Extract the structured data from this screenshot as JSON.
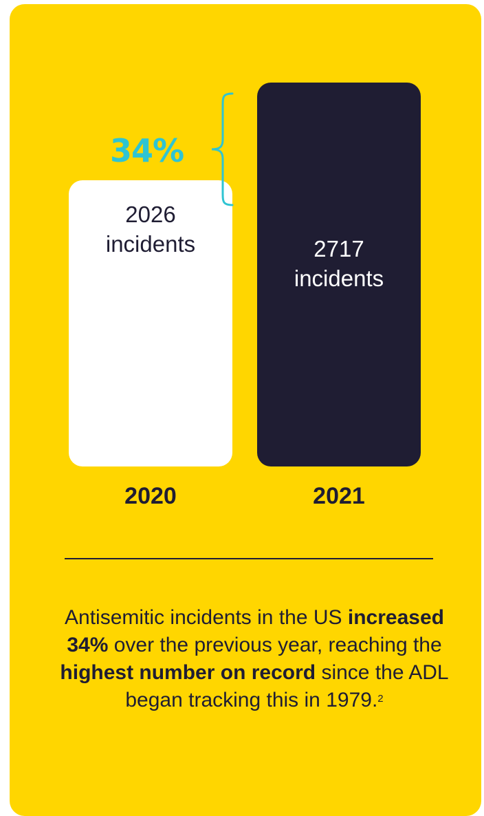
{
  "colors": {
    "background": "#ffd600",
    "bar_2020": "#ffffff",
    "bar_2021": "#1f1d33",
    "accent": "#2fc4d2",
    "text_dark": "#1f1d33"
  },
  "chart_data": {
    "type": "bar",
    "categories": [
      "2020",
      "2021"
    ],
    "values": [
      2026,
      2717
    ],
    "bar_labels": [
      {
        "number": "2026",
        "unit": "incidents"
      },
      {
        "number": "2717",
        "unit": "incidents"
      }
    ],
    "annotation": "34%",
    "ylim": [
      0,
      2717
    ],
    "grid": false
  },
  "caption": {
    "part1": "Antisemitic incidents in the US ",
    "bold1": "increased 34%",
    "part2": " over the previous year, reaching the ",
    "bold2": "highest number on record",
    "part3": " since the ADL began tracking this in 1979.",
    "footnote": "2"
  }
}
